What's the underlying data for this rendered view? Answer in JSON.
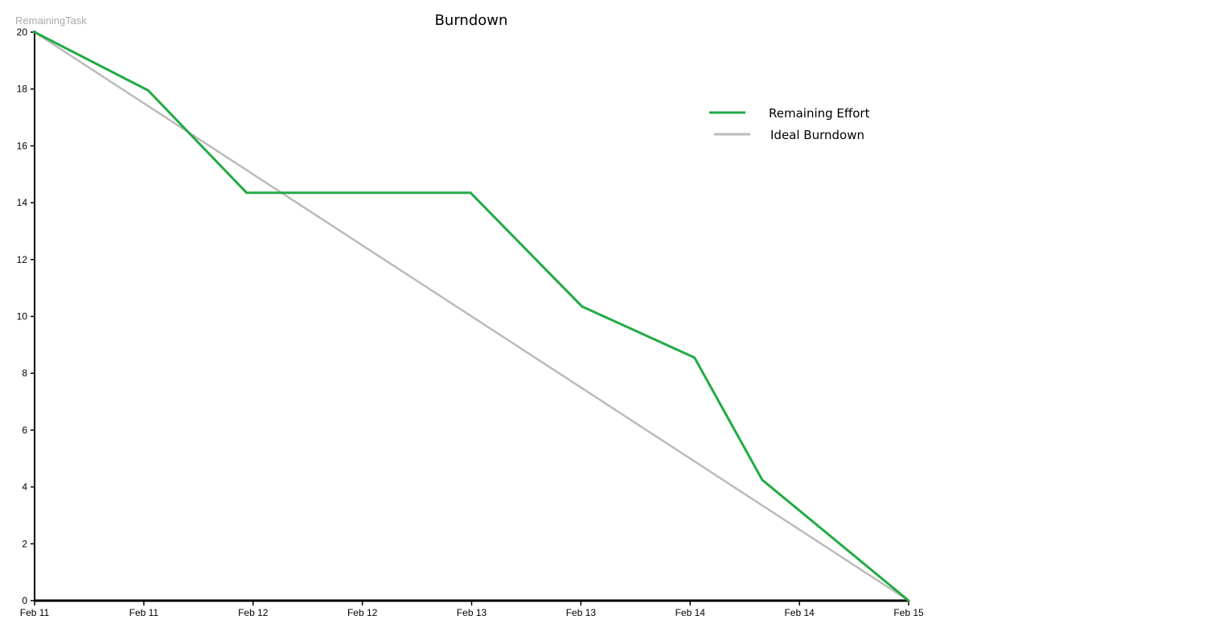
{
  "chart_data": {
    "type": "line",
    "title": "Burndown",
    "ylabel": "RemainingTask",
    "xlabel": "",
    "x_tick_labels": [
      "Feb 11",
      "Feb 11",
      "Feb 12",
      "Feb 12",
      "Feb 13",
      "Feb 13",
      "Feb 14",
      "Feb 14",
      "Feb 15"
    ],
    "x_range": [
      0,
      8
    ],
    "ylim": [
      0,
      20
    ],
    "y_ticks": [
      0,
      2,
      4,
      6,
      8,
      10,
      12,
      14,
      16,
      18,
      20
    ],
    "grid": false,
    "legend_position": "top-right",
    "series": [
      {
        "name": "Remaining Effort",
        "color": "#22aa44",
        "points": [
          {
            "x": 0,
            "y": 20
          },
          {
            "x": 1.04,
            "y": 17.95
          },
          {
            "x": 1.94,
            "y": 14.35
          },
          {
            "x": 3.99,
            "y": 14.35
          },
          {
            "x": 5.01,
            "y": 10.35
          },
          {
            "x": 6.04,
            "y": 8.55
          },
          {
            "x": 6.66,
            "y": 4.25
          },
          {
            "x": 8,
            "y": 0
          }
        ]
      },
      {
        "name": "Ideal Burndown",
        "color": "#bbbbbb",
        "points": [
          {
            "x": 0,
            "y": 20
          },
          {
            "x": 8,
            "y": 0
          }
        ]
      }
    ]
  }
}
